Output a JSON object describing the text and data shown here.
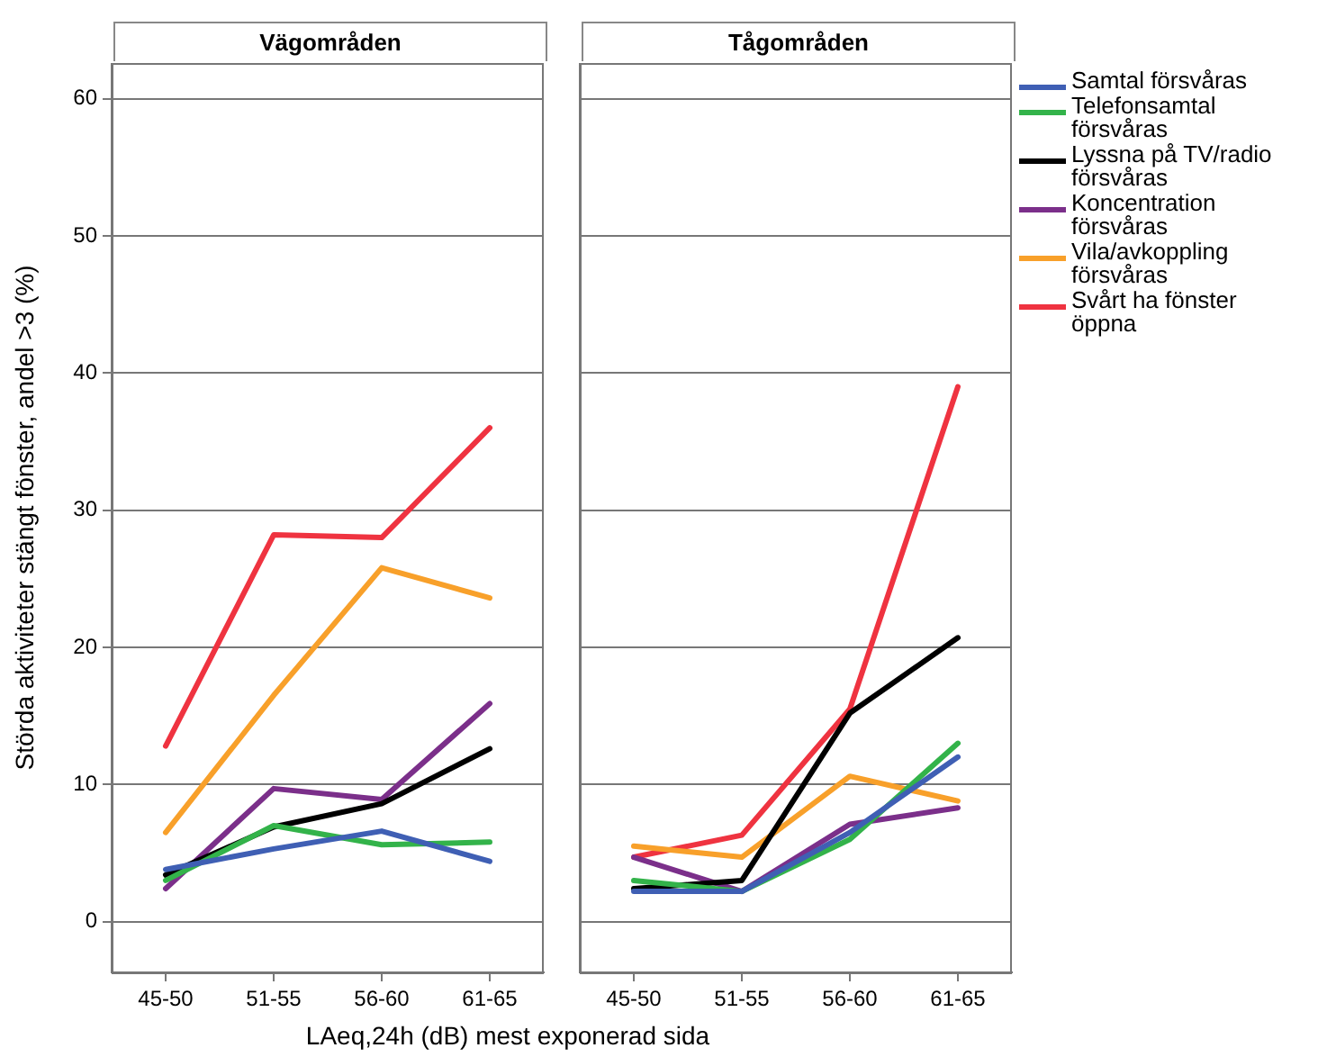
{
  "chart_data": [
    {
      "type": "line",
      "title": "Vägområden",
      "ylabel": "Störda aktiviteter stängt fönster, andel >3 (%)",
      "xlabel": "LAeq,24h (dB) mest exponerad sida",
      "categories": [
        "45-50",
        "51-55",
        "56-60",
        "61-65"
      ],
      "ylim": [
        -3.7,
        62.6
      ],
      "yticks": [
        0,
        10,
        20,
        30,
        40,
        50,
        60
      ],
      "grid": "y",
      "series": [
        {
          "color": "#3f5fb4",
          "values": [
            3.8,
            5.3,
            6.6,
            4.4
          ]
        },
        {
          "color": "#33b34a",
          "values": [
            3.0,
            7.0,
            5.6,
            5.8
          ]
        },
        {
          "color": "#000000",
          "values": [
            3.4,
            6.9,
            8.6,
            12.6
          ]
        },
        {
          "color": "#7b2f8a",
          "values": [
            2.4,
            9.7,
            8.9,
            15.9
          ]
        },
        {
          "color": "#f8a02a",
          "values": [
            6.5,
            16.5,
            25.8,
            23.6
          ]
        },
        {
          "color": "#ef3340",
          "values": [
            12.8,
            28.2,
            28.0,
            36.0
          ]
        }
      ]
    },
    {
      "type": "line",
      "title": "Tågområden",
      "categories": [
        "45-50",
        "51-55",
        "56-60",
        "61-65"
      ],
      "ylim": [
        -3.7,
        62.6
      ],
      "yticks": [
        0,
        10,
        20,
        30,
        40,
        50,
        60
      ],
      "grid": "y",
      "tick_labels": "x",
      "legend": "right",
      "series": [
        {
          "name": "Samtal försvåras",
          "color": "#3f5fb4",
          "values": [
            2.2,
            2.2,
            6.5,
            12.0
          ]
        },
        {
          "name": "Telefonsamtal försvåras",
          "color": "#33b34a",
          "values": [
            3.0,
            2.2,
            6.0,
            13.0
          ]
        },
        {
          "name": "Lyssna på TV/radio försvåras",
          "color": "#000000",
          "values": [
            2.4,
            3.0,
            15.2,
            20.7
          ]
        },
        {
          "name": "Koncentration försvåras",
          "color": "#7b2f8a",
          "values": [
            4.7,
            2.2,
            7.1,
            8.3
          ]
        },
        {
          "name": "Vila/avkoppling försvåras",
          "color": "#f8a02a",
          "values": [
            5.5,
            4.7,
            10.6,
            8.8
          ]
        },
        {
          "name": "Svårt ha fönster öppna",
          "color": "#ef3340",
          "values": [
            4.7,
            6.3,
            15.5,
            39.0
          ]
        }
      ]
    }
  ]
}
